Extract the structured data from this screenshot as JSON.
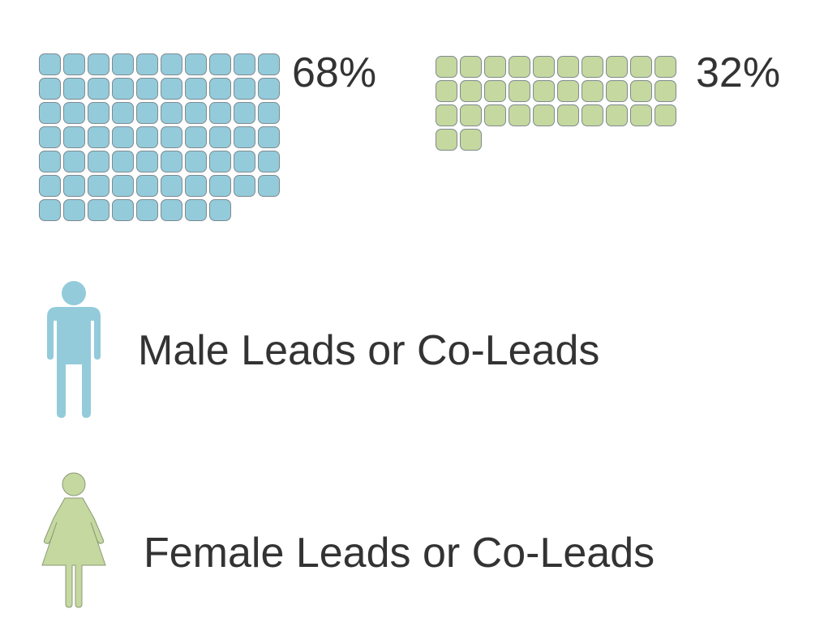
{
  "chart_data": {
    "type": "waffle",
    "title": "",
    "units_per_grid": 100,
    "columns": 10,
    "series": [
      {
        "name": "Male Leads or Co-Leads",
        "value": 68,
        "label": "68%",
        "color": "#93cbdb",
        "icon": "male-person-icon"
      },
      {
        "name": "Female Leads or Co-Leads",
        "value": 32,
        "label": "32%",
        "color": "#c5d89f",
        "icon": "female-person-icon"
      }
    ],
    "legend_placement": "bottom-left"
  }
}
